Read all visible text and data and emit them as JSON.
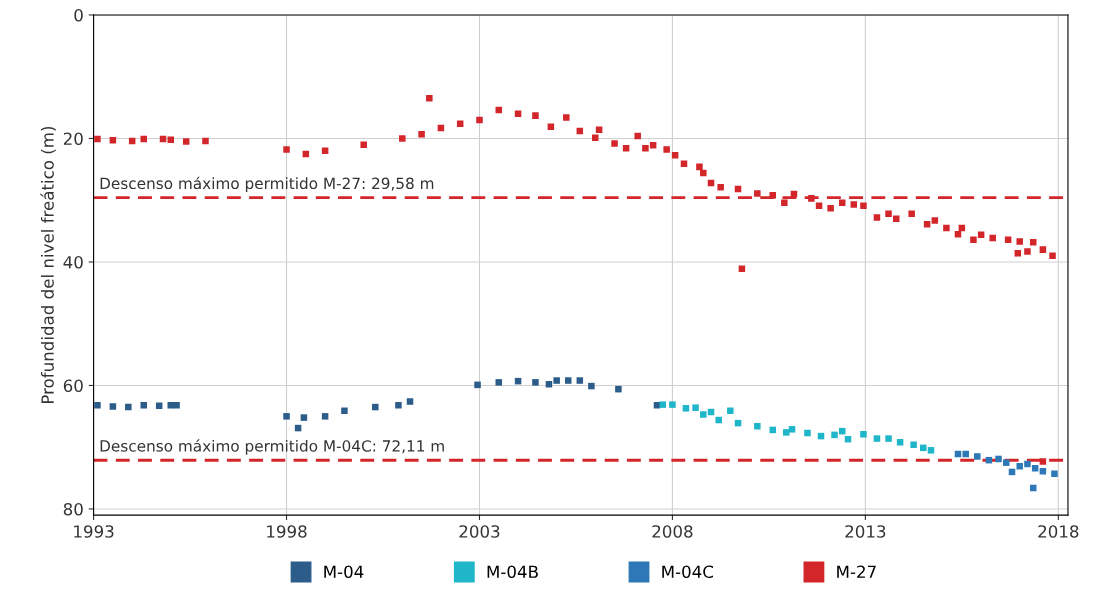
{
  "chart_data": {
    "type": "scatter",
    "ylabel": "Profundidad del nivel freático (m)",
    "marker": "square",
    "grid": true,
    "legend": "bottom",
    "xlim": [
      1993,
      2018.25
    ],
    "xticks": [
      1993,
      1998,
      2003,
      2008,
      2013,
      2018
    ],
    "ylim": [
      81,
      0
    ],
    "yticks": [
      0,
      20,
      40,
      60,
      80
    ],
    "series": [
      {
        "name": "M-04",
        "color": "#2b5c8a",
        "x": [
          1993.1,
          1993.5,
          1993.9,
          1994.3,
          1994.7,
          1995.0,
          1995.15,
          1998.0,
          1998.3,
          1998.45,
          1999.0,
          1999.5,
          2000.3,
          2000.9,
          2001.2,
          2002.95,
          2003.5,
          2004.0,
          2004.45,
          2004.8,
          2005.0,
          2005.3,
          2005.6,
          2005.9,
          2006.6,
          2007.6
        ],
        "values": [
          63.2,
          63.4,
          63.5,
          63.2,
          63.3,
          63.2,
          63.2,
          65.0,
          66.9,
          65.2,
          65.0,
          64.1,
          63.5,
          63.2,
          62.6,
          59.9,
          59.5,
          59.3,
          59.5,
          59.8,
          59.2,
          59.2,
          59.2,
          60.1,
          60.6,
          63.2
        ]
      },
      {
        "name": "M-04B",
        "color": "#1fb6c9",
        "x": [
          2007.75,
          2008.0,
          2008.35,
          2008.6,
          2008.8,
          2009.0,
          2009.2,
          2009.5,
          2009.7,
          2010.2,
          2010.6,
          2010.95,
          2011.1,
          2011.5,
          2011.85,
          2012.2,
          2012.4,
          2012.55,
          2012.95,
          2013.3,
          2013.6,
          2013.9,
          2014.25,
          2014.5,
          2014.7
        ],
        "values": [
          63.1,
          63.1,
          63.7,
          63.6,
          64.7,
          64.3,
          65.6,
          64.1,
          66.1,
          66.6,
          67.2,
          67.6,
          67.1,
          67.7,
          68.2,
          68.0,
          67.4,
          68.7,
          67.9,
          68.6,
          68.6,
          69.2,
          69.6,
          70.1,
          70.5
        ]
      },
      {
        "name": "M-04C",
        "color": "#2e78b7",
        "x": [
          2015.4,
          2015.6,
          2015.9,
          2016.2,
          2016.45,
          2016.65,
          2016.8,
          2017.0,
          2017.2,
          2017.35,
          2017.4,
          2017.6,
          2017.9
        ],
        "values": [
          71.1,
          71.1,
          71.5,
          72.1,
          71.9,
          72.5,
          74.0,
          73.1,
          72.7,
          76.6,
          73.4,
          73.9,
          74.3
        ]
      },
      {
        "name": "M-27",
        "color": "#d3262b",
        "x": [
          1993.1,
          1993.5,
          1994.0,
          1994.3,
          1994.8,
          1995.0,
          1995.4,
          1995.9,
          1998.0,
          1998.5,
          1999.0,
          2000.0,
          2001.0,
          2001.5,
          2001.7,
          2002.0,
          2002.5,
          2003.0,
          2003.5,
          2004.0,
          2004.45,
          2004.85,
          2005.25,
          2005.6,
          2006.0,
          2006.1,
          2006.5,
          2006.8,
          2007.1,
          2007.3,
          2007.5,
          2007.85,
          2008.07,
          2008.3,
          2008.7,
          2008.8,
          2009.0,
          2009.25,
          2009.7,
          2009.8,
          2010.2,
          2010.6,
          2010.9,
          2011.15,
          2011.6,
          2011.8,
          2012.1,
          2012.4,
          2012.7,
          2012.95,
          2013.3,
          2013.6,
          2013.8,
          2014.2,
          2014.6,
          2014.8,
          2015.1,
          2015.4,
          2015.5,
          2015.8,
          2016.0,
          2016.3,
          2016.7,
          2016.95,
          2017.0,
          2017.2,
          2017.35,
          2017.6,
          2017.6,
          2017.85
        ],
        "values": [
          20.1,
          20.3,
          20.4,
          20.1,
          20.1,
          20.2,
          20.5,
          20.4,
          21.8,
          22.5,
          22.0,
          21.0,
          20.0,
          19.3,
          13.5,
          18.3,
          17.6,
          17.0,
          15.4,
          16.0,
          16.3,
          18.1,
          16.6,
          18.8,
          19.9,
          18.6,
          20.8,
          21.6,
          19.6,
          21.6,
          21.1,
          21.8,
          22.7,
          24.1,
          24.6,
          25.6,
          27.2,
          27.9,
          28.2,
          41.1,
          28.9,
          29.2,
          30.4,
          29.0,
          29.7,
          30.9,
          31.3,
          30.4,
          30.7,
          30.9,
          32.8,
          32.2,
          33.0,
          32.2,
          33.9,
          33.3,
          34.5,
          35.5,
          34.5,
          36.4,
          35.6,
          36.1,
          36.4,
          38.6,
          36.7,
          38.3,
          36.8,
          38.0,
          72.3,
          39.0
        ]
      }
    ],
    "ref_lines": [
      {
        "axis": "y",
        "value": 29.58,
        "label": "Descenso máximo permitido M-27: 29,58 m",
        "color": "#d3262b",
        "line_style": "dashed"
      },
      {
        "axis": "y",
        "value": 72.11,
        "label": "Descenso máximo permitido M-04C: 72,11 m",
        "color": "#d3262b",
        "line_style": "dashed"
      }
    ]
  }
}
